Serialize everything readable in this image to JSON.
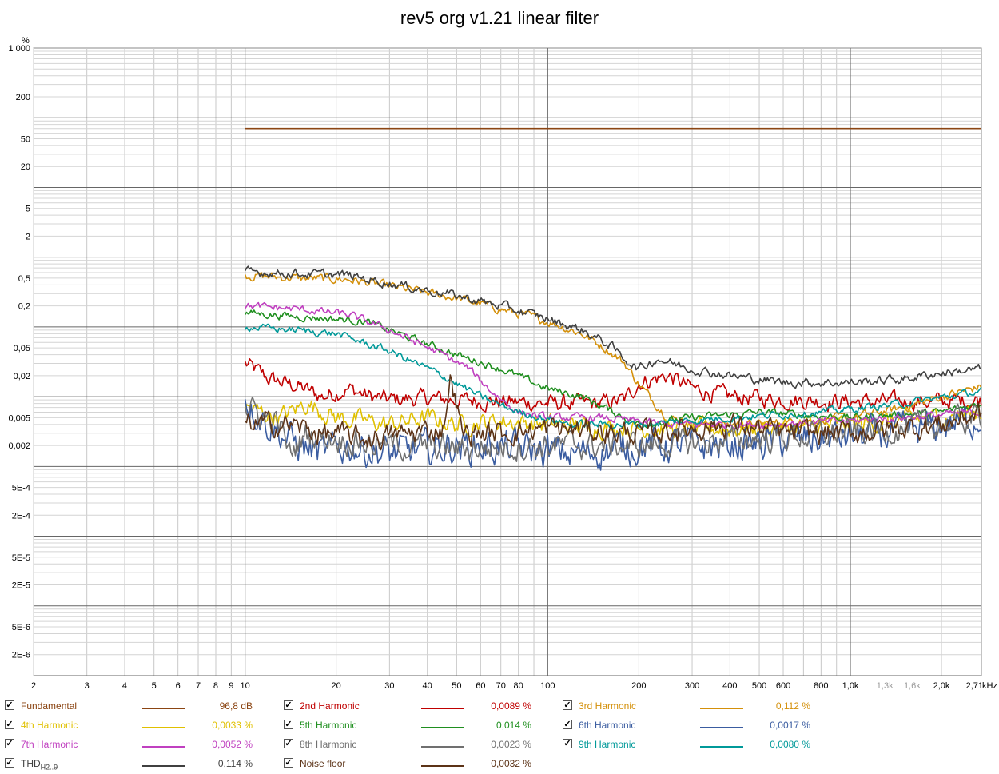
{
  "chart_data": {
    "type": "line",
    "title": "rev5 org v1.21 linear filter",
    "y_unit": "%",
    "x_unit": "kHz",
    "x_scale": "log",
    "y_scale": "log",
    "xlim": [
      2,
      2710
    ],
    "ylim": [
      1e-06,
      1000
    ],
    "grid": true,
    "x_tick_labels": [
      {
        "v": 2,
        "t": "2"
      },
      {
        "v": 3,
        "t": "3"
      },
      {
        "v": 4,
        "t": "4"
      },
      {
        "v": 5,
        "t": "5"
      },
      {
        "v": 6,
        "t": "6"
      },
      {
        "v": 7,
        "t": "7"
      },
      {
        "v": 8,
        "t": "8"
      },
      {
        "v": 9,
        "t": "9"
      },
      {
        "v": 10,
        "t": "10"
      },
      {
        "v": 20,
        "t": "20"
      },
      {
        "v": 30,
        "t": "30"
      },
      {
        "v": 40,
        "t": "40"
      },
      {
        "v": 50,
        "t": "50"
      },
      {
        "v": 60,
        "t": "60"
      },
      {
        "v": 70,
        "t": "70"
      },
      {
        "v": 80,
        "t": "80"
      },
      {
        "v": 100,
        "t": "100"
      },
      {
        "v": 200,
        "t": "200"
      },
      {
        "v": 300,
        "t": "300"
      },
      {
        "v": 400,
        "t": "400"
      },
      {
        "v": 500,
        "t": "500"
      },
      {
        "v": 600,
        "t": "600"
      },
      {
        "v": 800,
        "t": "800"
      },
      {
        "v": 1000,
        "t": "1,0k"
      },
      {
        "v": 1300,
        "t": "1,3k",
        "muted": true
      },
      {
        "v": 1600,
        "t": "1,6k",
        "muted": true
      },
      {
        "v": 2000,
        "t": "2,0k"
      },
      {
        "v": 2710,
        "t": "2,71"
      }
    ],
    "y_tick_labels": [
      {
        "v": 1000,
        "t": "1 000"
      },
      {
        "v": 200,
        "t": "200"
      },
      {
        "v": 50,
        "t": "50"
      },
      {
        "v": 20,
        "t": "20"
      },
      {
        "v": 5,
        "t": "5"
      },
      {
        "v": 2,
        "t": "2"
      },
      {
        "v": 0.5,
        "t": "0,5"
      },
      {
        "v": 0.2,
        "t": "0,2"
      },
      {
        "v": 0.05,
        "t": "0,05"
      },
      {
        "v": 0.02,
        "t": "0,02"
      },
      {
        "v": 0.005,
        "t": "0,005"
      },
      {
        "v": 0.002,
        "t": "0,002"
      },
      {
        "v": 0.0005,
        "t": "5E-4"
      },
      {
        "v": 0.0002,
        "t": "2E-4"
      },
      {
        "v": 5e-05,
        "t": "5E-5"
      },
      {
        "v": 2e-05,
        "t": "2E-5"
      },
      {
        "v": 5e-06,
        "t": "5E-6"
      },
      {
        "v": 2e-06,
        "t": "2E-6"
      }
    ],
    "series": [
      {
        "name": "Fundamental",
        "color": "#8B4513",
        "value_label": "96,8 dB",
        "noise": 0,
        "points": [
          [
            10,
            70
          ],
          [
            2710,
            70
          ]
        ]
      },
      {
        "name": "2nd Harmonic",
        "color": "#C00000",
        "value_label": "0,0089 %",
        "noise": 0.22,
        "points": [
          [
            10,
            0.03
          ],
          [
            12,
            0.018
          ],
          [
            15,
            0.014
          ],
          [
            18,
            0.01
          ],
          [
            22,
            0.013
          ],
          [
            26,
            0.01
          ],
          [
            30,
            0.009
          ],
          [
            40,
            0.0095
          ],
          [
            50,
            0.009
          ],
          [
            70,
            0.0085
          ],
          [
            100,
            0.008
          ],
          [
            150,
            0.008
          ],
          [
            180,
            0.009
          ],
          [
            200,
            0.016
          ],
          [
            250,
            0.02
          ],
          [
            300,
            0.013
          ],
          [
            400,
            0.01
          ],
          [
            600,
            0.009
          ],
          [
            1000,
            0.0085
          ],
          [
            2000,
            0.0085
          ],
          [
            2710,
            0.009
          ]
        ]
      },
      {
        "name": "3rd Harmonic",
        "color": "#D4900A",
        "value_label": "0,112 %",
        "noise": 0.12,
        "points": [
          [
            10,
            0.55
          ],
          [
            15,
            0.5
          ],
          [
            22,
            0.48
          ],
          [
            30,
            0.38
          ],
          [
            50,
            0.26
          ],
          [
            70,
            0.18
          ],
          [
            100,
            0.12
          ],
          [
            130,
            0.08
          ],
          [
            160,
            0.045
          ],
          [
            180,
            0.03
          ],
          [
            200,
            0.015
          ],
          [
            250,
            0.005
          ],
          [
            300,
            0.004
          ],
          [
            500,
            0.004
          ],
          [
            1000,
            0.005
          ],
          [
            1500,
            0.007
          ],
          [
            2000,
            0.01
          ],
          [
            2710,
            0.014
          ]
        ]
      },
      {
        "name": "4th Harmonic",
        "color": "#E0C000",
        "value_label": "0,0033 %",
        "noise": 0.25,
        "points": [
          [
            10,
            0.007
          ],
          [
            13,
            0.005
          ],
          [
            16,
            0.008
          ],
          [
            20,
            0.005
          ],
          [
            25,
            0.0045
          ],
          [
            30,
            0.004
          ],
          [
            40,
            0.005
          ],
          [
            50,
            0.004
          ],
          [
            70,
            0.0045
          ],
          [
            100,
            0.004
          ],
          [
            200,
            0.0035
          ],
          [
            500,
            0.0035
          ],
          [
            1000,
            0.004
          ],
          [
            2000,
            0.005
          ],
          [
            2710,
            0.006
          ]
        ]
      },
      {
        "name": "5th Harmonic",
        "color": "#1F8F1F",
        "value_label": "0,014 %",
        "noise": 0.1,
        "points": [
          [
            10,
            0.16
          ],
          [
            15,
            0.14
          ],
          [
            20,
            0.13
          ],
          [
            25,
            0.12
          ],
          [
            35,
            0.07
          ],
          [
            50,
            0.04
          ],
          [
            70,
            0.025
          ],
          [
            100,
            0.013
          ],
          [
            130,
            0.01
          ],
          [
            200,
            0.004
          ],
          [
            300,
            0.005
          ],
          [
            500,
            0.006
          ],
          [
            1000,
            0.005
          ],
          [
            2000,
            0.006
          ],
          [
            2710,
            0.008
          ]
        ]
      },
      {
        "name": "6th Harmonic",
        "color": "#3A5CA0",
        "value_label": "0,0017 %",
        "noise": 0.45,
        "points": [
          [
            10,
            0.009
          ],
          [
            12,
            0.004
          ],
          [
            15,
            0.002
          ],
          [
            18,
            0.0015
          ],
          [
            22,
            0.002
          ],
          [
            30,
            0.0015
          ],
          [
            50,
            0.002
          ],
          [
            80,
            0.0018
          ],
          [
            120,
            0.0015
          ],
          [
            200,
            0.002
          ],
          [
            400,
            0.002
          ],
          [
            800,
            0.0025
          ],
          [
            1500,
            0.003
          ],
          [
            2710,
            0.005
          ]
        ]
      },
      {
        "name": "7th Harmonic",
        "color": "#C040C0",
        "value_label": "0,0052 %",
        "noise": 0.1,
        "points": [
          [
            10,
            0.2
          ],
          [
            15,
            0.18
          ],
          [
            22,
            0.15
          ],
          [
            30,
            0.09
          ],
          [
            45,
            0.04
          ],
          [
            55,
            0.025
          ],
          [
            65,
            0.012
          ],
          [
            80,
            0.006
          ],
          [
            100,
            0.005
          ],
          [
            150,
            0.005
          ],
          [
            250,
            0.004
          ],
          [
            500,
            0.004
          ],
          [
            1000,
            0.0045
          ],
          [
            2710,
            0.006
          ]
        ]
      },
      {
        "name": "8th Harmonic",
        "color": "#707070",
        "value_label": "0,0023 %",
        "noise": 0.35,
        "points": [
          [
            10,
            0.007
          ],
          [
            13,
            0.004
          ],
          [
            14,
            0.0015
          ],
          [
            16,
            0.003
          ],
          [
            20,
            0.0025
          ],
          [
            30,
            0.002
          ],
          [
            50,
            0.0018
          ],
          [
            100,
            0.002
          ],
          [
            200,
            0.002
          ],
          [
            500,
            0.0025
          ],
          [
            1000,
            0.003
          ],
          [
            2000,
            0.004
          ],
          [
            2710,
            0.005
          ]
        ]
      },
      {
        "name": "9th Harmonic",
        "color": "#009999",
        "value_label": "0,0080 %",
        "noise": 0.1,
        "points": [
          [
            10,
            0.1
          ],
          [
            15,
            0.09
          ],
          [
            20,
            0.08
          ],
          [
            30,
            0.045
          ],
          [
            45,
            0.02
          ],
          [
            60,
            0.01
          ],
          [
            80,
            0.006
          ],
          [
            120,
            0.004
          ],
          [
            200,
            0.004
          ],
          [
            400,
            0.005
          ],
          [
            800,
            0.006
          ],
          [
            1500,
            0.008
          ],
          [
            2710,
            0.012
          ]
        ]
      },
      {
        "name": "THD",
        "name_sub": "H2..9",
        "color": "#404040",
        "value_label": "0,114 %",
        "noise": 0.12,
        "points": [
          [
            10,
            0.62
          ],
          [
            15,
            0.58
          ],
          [
            22,
            0.55
          ],
          [
            30,
            0.42
          ],
          [
            50,
            0.28
          ],
          [
            70,
            0.2
          ],
          [
            100,
            0.13
          ],
          [
            130,
            0.09
          ],
          [
            160,
            0.055
          ],
          [
            180,
            0.035
          ],
          [
            200,
            0.025
          ],
          [
            230,
            0.035
          ],
          [
            300,
            0.025
          ],
          [
            400,
            0.02
          ],
          [
            600,
            0.016
          ],
          [
            1000,
            0.016
          ],
          [
            1500,
            0.018
          ],
          [
            2000,
            0.022
          ],
          [
            2710,
            0.025
          ]
        ]
      },
      {
        "name": "Noise floor",
        "color": "#5C3317",
        "value_label": "0,0032 %",
        "noise": 0.3,
        "points": [
          [
            10,
            0.004
          ],
          [
            14,
            0.004
          ],
          [
            18,
            0.003
          ],
          [
            25,
            0.0025
          ],
          [
            35,
            0.003
          ],
          [
            45,
            0.0035
          ],
          [
            48,
            0.02
          ],
          [
            52,
            0.003
          ],
          [
            70,
            0.003
          ],
          [
            100,
            0.0035
          ],
          [
            200,
            0.003
          ],
          [
            400,
            0.004
          ],
          [
            600,
            0.003
          ],
          [
            1000,
            0.003
          ],
          [
            2000,
            0.004
          ],
          [
            2710,
            0.006
          ]
        ]
      }
    ]
  }
}
